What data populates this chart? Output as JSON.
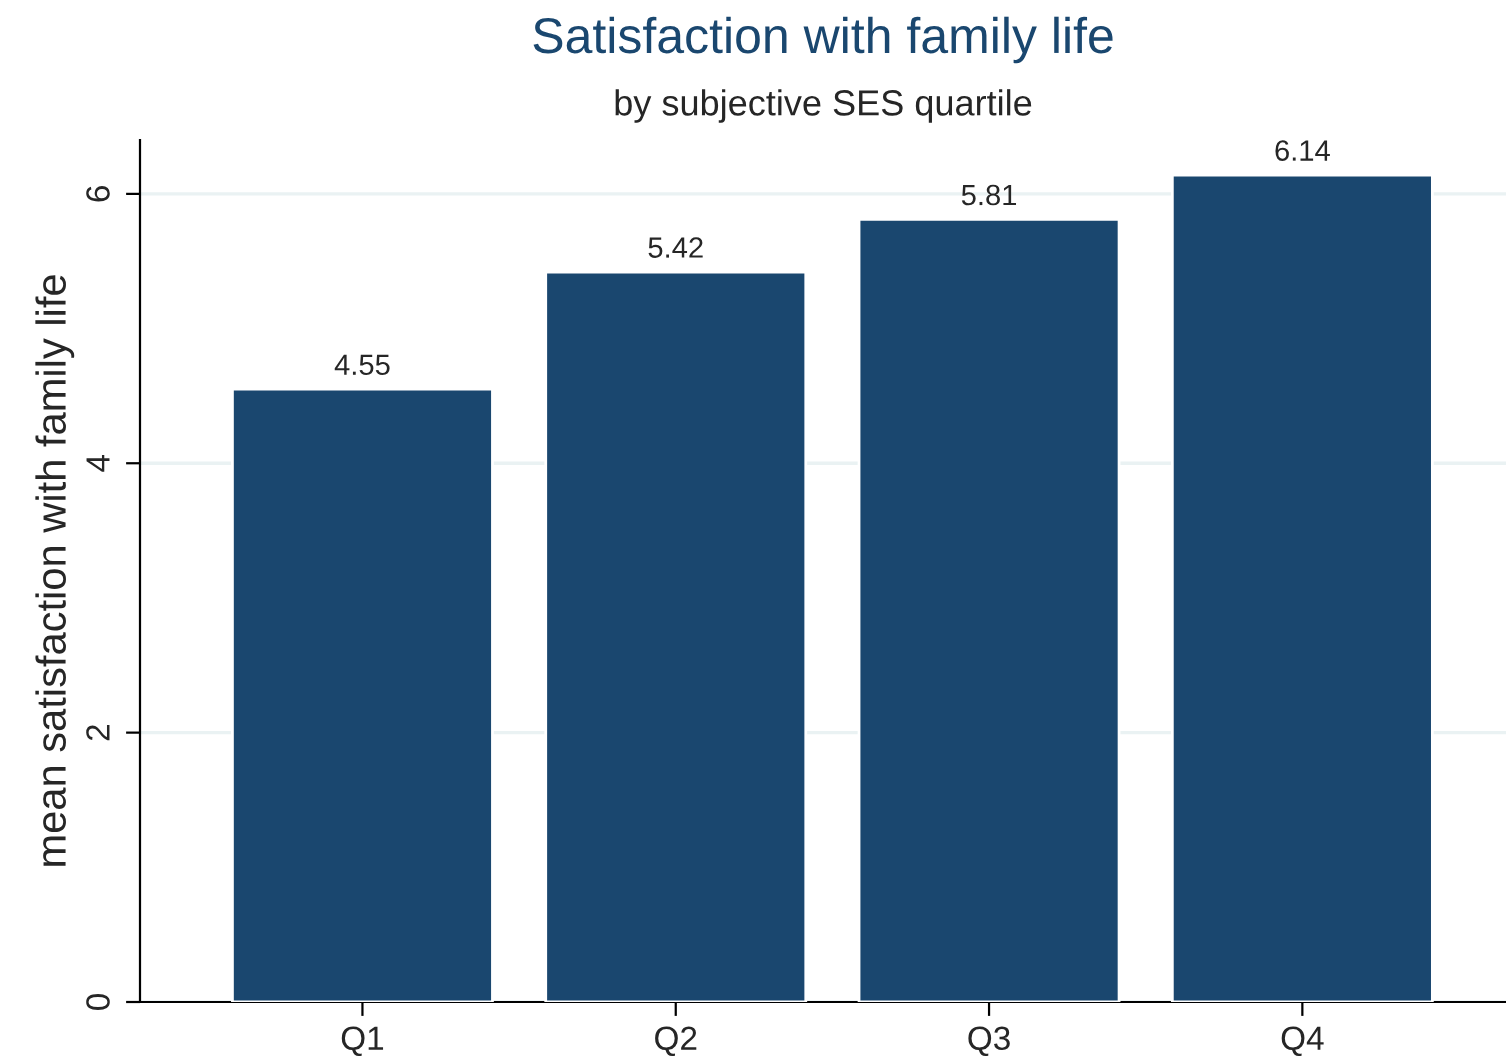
{
  "chart_data": {
    "type": "bar",
    "title": "Satisfaction with family life",
    "subtitle": "by subjective SES quartile",
    "ylabel": "mean satisfaction with family life",
    "categories": [
      "Q1",
      "Q2",
      "Q3",
      "Q4"
    ],
    "values": [
      4.55,
      5.42,
      5.81,
      6.14
    ],
    "color": "#1a476f",
    "ylim": [
      0,
      6.4
    ],
    "yticks": [
      0,
      2,
      4,
      6
    ],
    "grid": "y",
    "data_labels": true
  }
}
